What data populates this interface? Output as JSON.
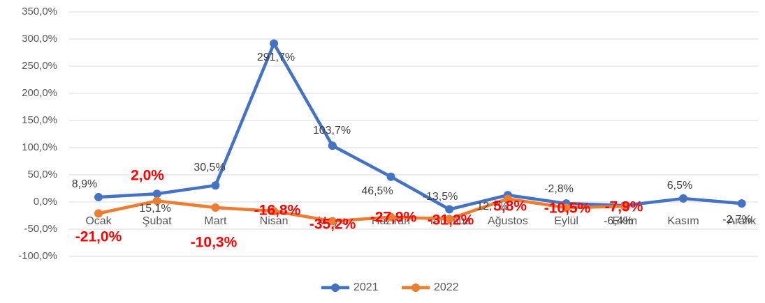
{
  "chart_data": {
    "type": "line",
    "categories": [
      "Ocak",
      "Şubat",
      "Mart",
      "Nisan",
      "Mayıs",
      "Haziran",
      "Temmuz",
      "Ağustos",
      "Eylül",
      "Ekim",
      "Kasım",
      "Aralık"
    ],
    "series": [
      {
        "name": "2021",
        "color": "#4472c4",
        "values": [
          8.9,
          15.1,
          30.5,
          291.7,
          103.7,
          46.5,
          -13.5,
          12.7,
          -2.8,
          -6.4,
          6.5,
          -2.7
        ],
        "value_labels": [
          "8,9%",
          "15,1%",
          "30,5%",
          "291,7%",
          "103,7%",
          "46,5%",
          "-13,5%",
          "12,7%",
          "-2,8%",
          "-6,4%",
          "6,5%",
          "-2,7%"
        ]
      },
      {
        "name": "2022",
        "color": "#ed7d31",
        "values": [
          -21.0,
          2.0,
          -10.3,
          -16.8,
          -35.2,
          -27.9,
          -31.2,
          5.8,
          -10.5,
          -7.9,
          null,
          null
        ],
        "value_labels": [
          "-21,0%",
          "2,0%",
          "-10,3%",
          "-16,8%",
          "-35,2%",
          "-27,9%",
          "-31,2%",
          "5,8%",
          "-10,5%",
          "-7,9%",
          null,
          null
        ]
      }
    ],
    "ylim": [
      -100,
      350
    ],
    "yticks": [
      {
        "value": -100,
        "label": "-100,0%"
      },
      {
        "value": -50,
        "label": "-50,0%"
      },
      {
        "value": 0,
        "label": "0,0%"
      },
      {
        "value": 50,
        "label": "50,0%"
      },
      {
        "value": 100,
        "label": "100,0%"
      },
      {
        "value": 150,
        "label": "150,0%"
      },
      {
        "value": 200,
        "label": "200,0%"
      },
      {
        "value": 250,
        "label": "250,0%"
      },
      {
        "value": 300,
        "label": "300,0%"
      },
      {
        "value": 350,
        "label": "350,0%"
      }
    ],
    "grid": true,
    "legend": "bottom"
  }
}
